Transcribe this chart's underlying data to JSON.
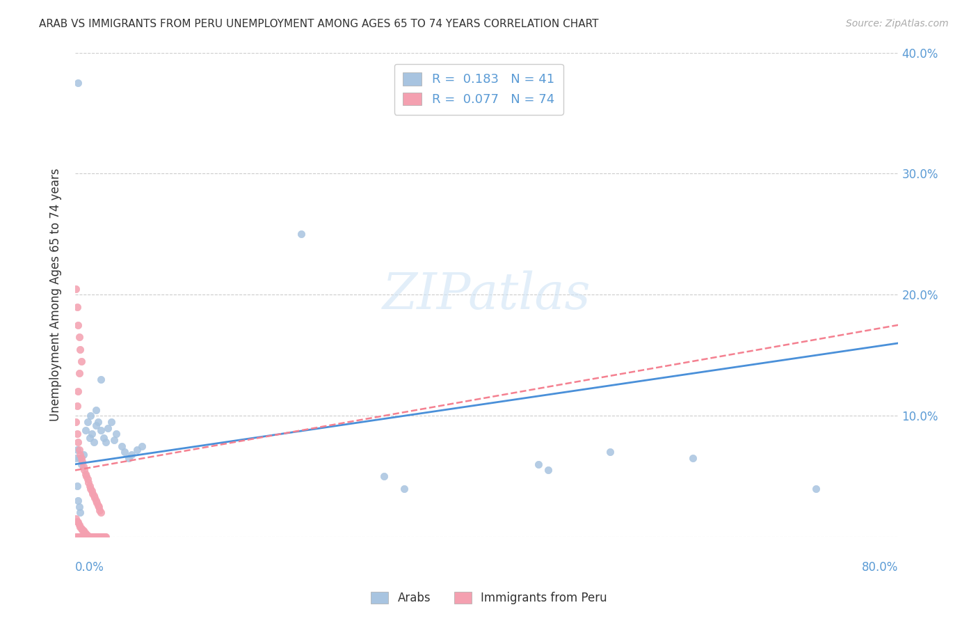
{
  "title": "ARAB VS IMMIGRANTS FROM PERU UNEMPLOYMENT AMONG AGES 65 TO 74 YEARS CORRELATION CHART",
  "source": "Source: ZipAtlas.com",
  "ylabel": "Unemployment Among Ages 65 to 74 years",
  "legend_arab": {
    "R": 0.183,
    "N": 41
  },
  "legend_peru": {
    "R": 0.077,
    "N": 74
  },
  "arab_color": "#a8c4e0",
  "peru_color": "#f4a0b0",
  "arab_line_color": "#4a90d9",
  "peru_line_color": "#f48090",
  "watermark_color": "#d0e4f5",
  "axis_label_color": "#5b9bd5",
  "title_color": "#333333",
  "source_color": "#aaaaaa",
  "xlim": [
    0,
    0.8
  ],
  "ylim": [
    0,
    0.4
  ],
  "arab_points": [
    [
      0.002,
      0.072
    ],
    [
      0.004,
      0.065
    ],
    [
      0.006,
      0.06
    ],
    [
      0.008,
      0.068
    ],
    [
      0.01,
      0.088
    ],
    [
      0.012,
      0.095
    ],
    [
      0.014,
      0.082
    ],
    [
      0.016,
      0.085
    ],
    [
      0.018,
      0.078
    ],
    [
      0.02,
      0.105
    ],
    [
      0.022,
      0.095
    ],
    [
      0.025,
      0.088
    ],
    [
      0.028,
      0.082
    ],
    [
      0.03,
      0.078
    ],
    [
      0.032,
      0.09
    ],
    [
      0.035,
      0.095
    ],
    [
      0.038,
      0.08
    ],
    [
      0.04,
      0.085
    ],
    [
      0.045,
      0.075
    ],
    [
      0.048,
      0.07
    ],
    [
      0.052,
      0.065
    ],
    [
      0.055,
      0.068
    ],
    [
      0.06,
      0.072
    ],
    [
      0.065,
      0.075
    ],
    [
      0.015,
      0.1
    ],
    [
      0.02,
      0.092
    ],
    [
      0.025,
      0.13
    ],
    [
      0.22,
      0.25
    ],
    [
      0.3,
      0.05
    ],
    [
      0.32,
      0.04
    ],
    [
      0.45,
      0.06
    ],
    [
      0.46,
      0.055
    ],
    [
      0.52,
      0.07
    ],
    [
      0.6,
      0.065
    ],
    [
      0.72,
      0.04
    ],
    [
      0.003,
      0.375
    ],
    [
      0.001,
      0.065
    ],
    [
      0.002,
      0.042
    ],
    [
      0.003,
      0.03
    ],
    [
      0.004,
      0.025
    ],
    [
      0.005,
      0.02
    ]
  ],
  "peru_points": [
    [
      0.001,
      0.205
    ],
    [
      0.002,
      0.19
    ],
    [
      0.003,
      0.175
    ],
    [
      0.004,
      0.165
    ],
    [
      0.005,
      0.155
    ],
    [
      0.006,
      0.145
    ],
    [
      0.004,
      0.135
    ],
    [
      0.003,
      0.12
    ],
    [
      0.002,
      0.108
    ],
    [
      0.001,
      0.095
    ],
    [
      0.002,
      0.085
    ],
    [
      0.003,
      0.078
    ],
    [
      0.004,
      0.072
    ],
    [
      0.005,
      0.068
    ],
    [
      0.006,
      0.065
    ],
    [
      0.007,
      0.062
    ],
    [
      0.008,
      0.058
    ],
    [
      0.009,
      0.055
    ],
    [
      0.01,
      0.052
    ],
    [
      0.011,
      0.05
    ],
    [
      0.012,
      0.048
    ],
    [
      0.013,
      0.045
    ],
    [
      0.014,
      0.042
    ],
    [
      0.015,
      0.04
    ],
    [
      0.016,
      0.038
    ],
    [
      0.017,
      0.036
    ],
    [
      0.018,
      0.034
    ],
    [
      0.019,
      0.032
    ],
    [
      0.02,
      0.03
    ],
    [
      0.021,
      0.028
    ],
    [
      0.022,
      0.026
    ],
    [
      0.023,
      0.025
    ],
    [
      0.024,
      0.022
    ],
    [
      0.025,
      0.02
    ],
    [
      0.001,
      0.015
    ],
    [
      0.002,
      0.013
    ],
    [
      0.003,
      0.012
    ],
    [
      0.004,
      0.01
    ],
    [
      0.005,
      0.008
    ],
    [
      0.006,
      0.007
    ],
    [
      0.007,
      0.006
    ],
    [
      0.008,
      0.005
    ],
    [
      0.009,
      0.004
    ],
    [
      0.01,
      0.003
    ],
    [
      0.011,
      0.002
    ],
    [
      0.012,
      0.001
    ],
    [
      0.013,
      0.0
    ],
    [
      0.014,
      0.0
    ],
    [
      0.015,
      0.0
    ],
    [
      0.016,
      0.0
    ],
    [
      0.017,
      0.0
    ],
    [
      0.018,
      0.0
    ],
    [
      0.019,
      0.0
    ],
    [
      0.02,
      0.0
    ],
    [
      0.021,
      0.0
    ],
    [
      0.022,
      0.0
    ],
    [
      0.023,
      0.0
    ],
    [
      0.024,
      0.0
    ],
    [
      0.025,
      0.0
    ],
    [
      0.026,
      0.0
    ],
    [
      0.027,
      0.0
    ],
    [
      0.028,
      0.0
    ],
    [
      0.029,
      0.0
    ],
    [
      0.03,
      0.0
    ],
    [
      0.001,
      0.0
    ],
    [
      0.002,
      0.0
    ],
    [
      0.003,
      0.0
    ],
    [
      0.004,
      0.0
    ],
    [
      0.005,
      0.0
    ],
    [
      0.006,
      0.0
    ],
    [
      0.007,
      0.0
    ],
    [
      0.008,
      0.0
    ],
    [
      0.009,
      0.0
    ],
    [
      0.01,
      0.0
    ]
  ],
  "arab_trendline": [
    [
      0.0,
      0.06
    ],
    [
      0.8,
      0.16
    ]
  ],
  "peru_trendline": [
    [
      0.0,
      0.055
    ],
    [
      0.8,
      0.175
    ]
  ]
}
